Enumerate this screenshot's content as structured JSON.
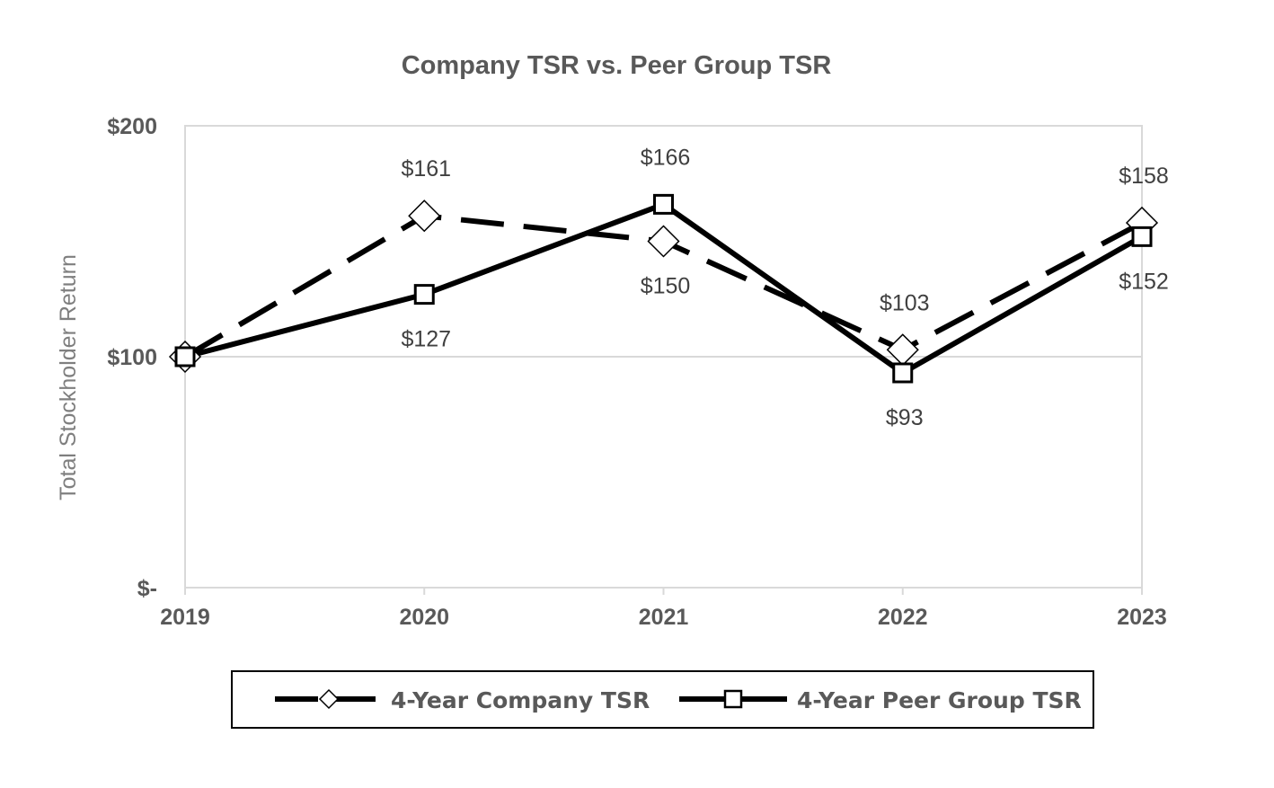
{
  "chart_data": {
    "type": "line",
    "title": "Company TSR vs. Peer Group TSR",
    "ylabel": "Total Stockholder Return",
    "xlabel": "",
    "categories": [
      "2019",
      "2020",
      "2021",
      "2022",
      "2023"
    ],
    "ylim": [
      0,
      200
    ],
    "yticks": [
      {
        "value": 0,
        "label": "$-"
      },
      {
        "value": 100,
        "label": "$100"
      },
      {
        "value": 200,
        "label": "$200"
      }
    ],
    "gridlines": true,
    "legend_position": "bottom",
    "series": [
      {
        "name": "4-Year Company TSR",
        "values": [
          100,
          161,
          150,
          103,
          158
        ],
        "labels": [
          "",
          "$161",
          "$150",
          "$103",
          "$158"
        ],
        "label_side": [
          "",
          "above",
          "below",
          "above",
          "above"
        ],
        "style": "dashed",
        "marker": "diamond",
        "color": "#000000"
      },
      {
        "name": "4-Year Peer Group TSR",
        "values": [
          100,
          127,
          166,
          93,
          152
        ],
        "labels": [
          "",
          "$127",
          "$166",
          "$93",
          "$152"
        ],
        "label_side": [
          "",
          "below",
          "above",
          "below",
          "below"
        ],
        "style": "solid",
        "marker": "square",
        "color": "#000000"
      }
    ]
  }
}
